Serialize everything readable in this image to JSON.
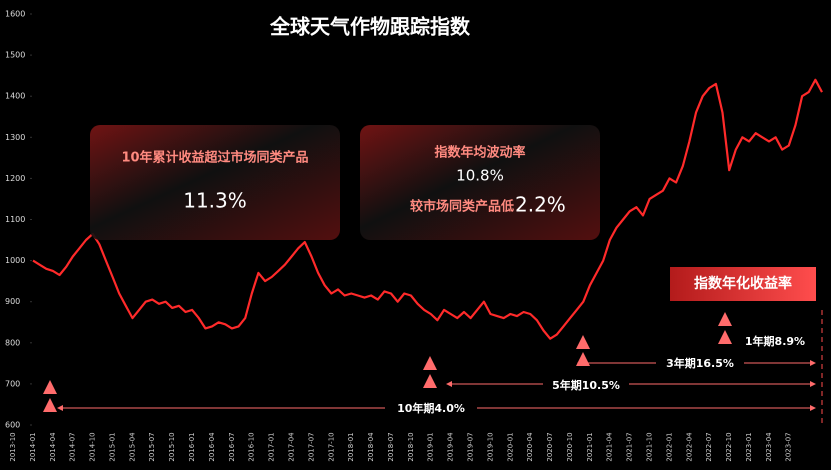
{
  "chart_data": {
    "type": "line",
    "title": "全球天气作物跟踪指数",
    "categories": [
      "2013-10",
      null,
      null,
      "2014-01",
      null,
      null,
      "2014-04",
      null,
      null,
      "2014-07",
      null,
      null,
      "2014-10",
      null,
      null,
      "2015-01",
      null,
      null,
      "2015-04",
      null,
      null,
      "2015-07",
      null,
      null,
      "2015-10",
      null,
      null,
      "2016-01",
      null,
      null,
      "2016-04",
      null,
      null,
      "2016-07",
      null,
      null,
      "2016-10",
      null,
      null,
      "2017-01",
      null,
      null,
      "2017-04",
      null,
      null,
      "2017-07",
      null,
      null,
      "2017-10",
      null,
      null,
      "2018-01",
      null,
      null,
      "2018-04",
      null,
      null,
      "2018-07",
      null,
      null,
      "2018-10",
      null,
      null,
      "2019-01",
      null,
      null,
      "2019-04",
      null,
      null,
      "2019-07",
      null,
      null,
      "2019-10",
      null,
      null,
      "2020-01",
      null,
      null,
      "2020-04",
      null,
      null,
      "2020-07",
      null,
      null,
      "2020-10",
      null,
      null,
      "2021-01",
      null,
      null,
      "2021-04",
      null,
      null,
      "2021-07",
      null,
      null,
      "2021-10",
      null,
      null,
      "2022-01",
      null,
      null,
      "2022-04",
      null,
      null,
      "2022-07",
      null,
      null,
      "2022-10",
      null,
      null,
      "2023-01",
      null,
      null,
      "2023-04",
      null,
      null,
      "2023-07",
      null,
      null
    ],
    "values": [
      1000,
      990,
      980,
      975,
      965,
      985,
      1010,
      1030,
      1050,
      1065,
      1040,
      1000,
      960,
      920,
      890,
      860,
      880,
      900,
      905,
      895,
      900,
      885,
      890,
      875,
      880,
      860,
      835,
      840,
      850,
      845,
      835,
      840,
      860,
      920,
      970,
      950,
      960,
      975,
      990,
      1010,
      1030,
      1045,
      1010,
      970,
      940,
      920,
      930,
      915,
      920,
      915,
      910,
      915,
      905,
      925,
      920,
      900,
      920,
      915,
      895,
      880,
      870,
      855,
      880,
      870,
      860,
      875,
      860,
      880,
      900,
      870,
      865,
      860,
      870,
      865,
      875,
      870,
      855,
      830,
      810,
      820,
      840,
      860,
      880,
      900,
      940,
      970,
      1000,
      1050,
      1080,
      1100,
      1120,
      1130,
      1110,
      1150,
      1160,
      1170,
      1200,
      1190,
      1230,
      1290,
      1360,
      1400,
      1420,
      1430,
      1360,
      1220,
      1270,
      1300,
      1290,
      1310,
      1300,
      1290,
      1300,
      1270,
      1280,
      1330,
      1400,
      1410,
      1440,
      1410
    ],
    "color": "#ff2a2a",
    "ylim": [
      600,
      1600
    ],
    "yticks": [
      600,
      700,
      800,
      900,
      1000,
      1100,
      1200,
      1300,
      1400,
      1500,
      1600
    ],
    "grid": false,
    "annotations": {
      "box1_label": "10年累计收益超过市场同类产品",
      "box1_value": "11.3%",
      "box2_label": "指数年均波动率",
      "box2_value": "10.8%",
      "box2_label2": "较市场同类产品低",
      "box2_value2": "2.2%",
      "returns_title": "指数年化收益率",
      "period_1y": "1年期8.9%",
      "period_3y": "3年期16.5%",
      "period_5y": "5年期10.5%",
      "period_10y": "10年期4.0%"
    }
  }
}
